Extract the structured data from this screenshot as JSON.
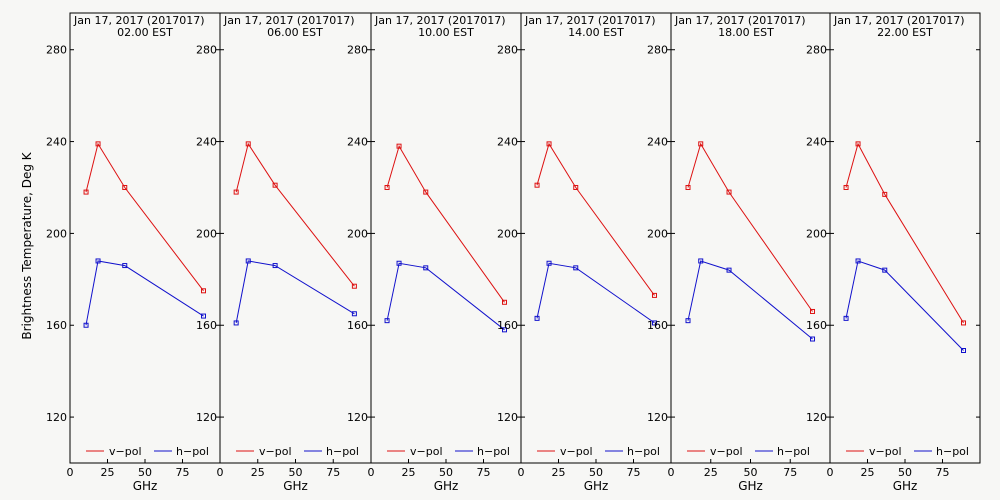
{
  "figure": {
    "ylabel": "Brightness Temperature, Deg K",
    "xlabel": "GHz",
    "legend": {
      "v": "v−pol",
      "h": "h−pol"
    }
  },
  "colors": {
    "vpol": "#dd1111",
    "hpol": "#1111cc",
    "background": "#f7f7f5",
    "frame": "#000000"
  },
  "chart_data": [
    {
      "type": "line",
      "title": "Jan 17, 2017 (2017017)",
      "subtitle": "02.00 EST",
      "x": [
        10.7,
        18.7,
        36.5,
        89.0
      ],
      "series": [
        {
          "name": "v−pol",
          "values": [
            218,
            239,
            220,
            175
          ]
        },
        {
          "name": "h−pol",
          "values": [
            160,
            188,
            186,
            164
          ]
        }
      ],
      "xlabel": "GHz",
      "ylabel": "Brightness Temperature, Deg K",
      "xlim": [
        0,
        100
      ],
      "ylim": [
        100,
        296
      ],
      "xticks": [
        0,
        25,
        50,
        75
      ],
      "yticks": [
        120,
        160,
        200,
        240,
        280
      ],
      "ytick_side": "left",
      "legend": "bottom"
    },
    {
      "type": "line",
      "title": "Jan 17, 2017 (2017017)",
      "subtitle": "06.00 EST",
      "x": [
        10.7,
        18.7,
        36.5,
        89.0
      ],
      "series": [
        {
          "name": "v−pol",
          "values": [
            218,
            239,
            221,
            177
          ]
        },
        {
          "name": "h−pol",
          "values": [
            161,
            188,
            186,
            165
          ]
        }
      ],
      "xlabel": "GHz",
      "ylabel": "Brightness Temperature, Deg K",
      "xlim": [
        0,
        100
      ],
      "ylim": [
        100,
        296
      ],
      "xticks": [
        0,
        25,
        50,
        75
      ],
      "yticks": [
        120,
        160,
        200,
        240,
        280
      ],
      "ytick_side": "right",
      "legend": "bottom"
    },
    {
      "type": "line",
      "title": "Jan 17, 2017 (2017017)",
      "subtitle": "10.00 EST",
      "x": [
        10.7,
        18.7,
        36.5,
        89.0
      ],
      "series": [
        {
          "name": "v−pol",
          "values": [
            220,
            238,
            218,
            170
          ]
        },
        {
          "name": "h−pol",
          "values": [
            162,
            187,
            185,
            158
          ]
        }
      ],
      "xlabel": "GHz",
      "ylabel": "Brightness Temperature, Deg K",
      "xlim": [
        0,
        100
      ],
      "ylim": [
        100,
        296
      ],
      "xticks": [
        0,
        25,
        50,
        75
      ],
      "yticks": [
        120,
        160,
        200,
        240,
        280
      ],
      "ytick_side": "right",
      "legend": "bottom"
    },
    {
      "type": "line",
      "title": "Jan 17, 2017 (2017017)",
      "subtitle": "14.00 EST",
      "x": [
        10.7,
        18.7,
        36.5,
        89.0
      ],
      "series": [
        {
          "name": "v−pol",
          "values": [
            221,
            239,
            220,
            173
          ]
        },
        {
          "name": "h−pol",
          "values": [
            163,
            187,
            185,
            161
          ]
        }
      ],
      "xlabel": "GHz",
      "ylabel": "Brightness Temperature, Deg K",
      "xlim": [
        0,
        100
      ],
      "ylim": [
        100,
        296
      ],
      "xticks": [
        0,
        25,
        50,
        75
      ],
      "yticks": [
        120,
        160,
        200,
        240,
        280
      ],
      "ytick_side": "right",
      "legend": "bottom"
    },
    {
      "type": "line",
      "title": "Jan 17, 2017 (2017017)",
      "subtitle": "18.00 EST",
      "x": [
        10.7,
        18.7,
        36.5,
        89.0
      ],
      "series": [
        {
          "name": "v−pol",
          "values": [
            220,
            239,
            218,
            166
          ]
        },
        {
          "name": "h−pol",
          "values": [
            162,
            188,
            184,
            154
          ]
        }
      ],
      "xlabel": "GHz",
      "ylabel": "Brightness Temperature, Deg K",
      "xlim": [
        0,
        100
      ],
      "ylim": [
        100,
        296
      ],
      "xticks": [
        0,
        25,
        50,
        75
      ],
      "yticks": [
        120,
        160,
        200,
        240,
        280
      ],
      "ytick_side": "right",
      "legend": "bottom"
    },
    {
      "type": "line",
      "title": "Jan 17, 2017 (2017017)",
      "subtitle": "22.00 EST",
      "x": [
        10.7,
        18.7,
        36.5,
        89.0
      ],
      "series": [
        {
          "name": "v−pol",
          "values": [
            220,
            239,
            217,
            161
          ]
        },
        {
          "name": "h−pol",
          "values": [
            163,
            188,
            184,
            149
          ]
        }
      ],
      "xlabel": "GHz",
      "ylabel": "Brightness Temperature, Deg K",
      "xlim": [
        0,
        100
      ],
      "ylim": [
        100,
        296
      ],
      "xticks": [
        0,
        25,
        50,
        75
      ],
      "yticks": [
        120,
        160,
        200,
        240,
        280
      ],
      "ytick_side": "right",
      "legend": "bottom"
    }
  ]
}
